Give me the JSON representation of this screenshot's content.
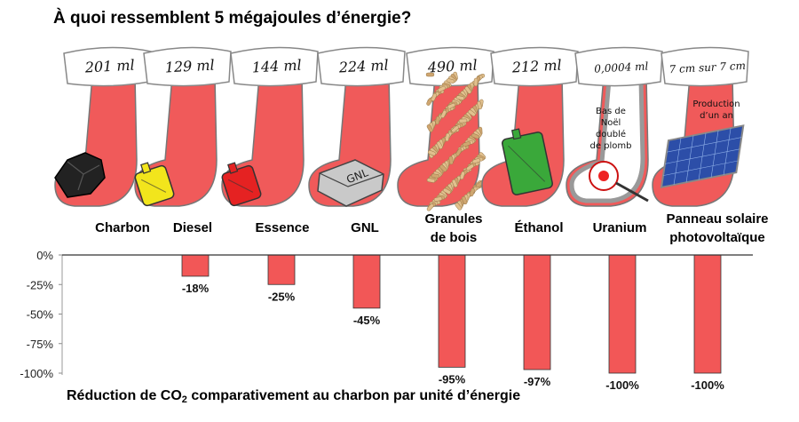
{
  "title": "À quoi ressemblent 5 mégajoules d’énergie?",
  "footer": {
    "prefix": "Réduction de CO",
    "subscript": "2",
    "suffix": " comparativement au charbon par unité d’énergie"
  },
  "stockings": [
    {
      "volume": "201 ml",
      "item": "Charbon",
      "icon": "coal-lump-icon"
    },
    {
      "volume": "129 ml",
      "item": "Diesel",
      "icon": "yellow-jerrycan-icon"
    },
    {
      "volume": "144 ml",
      "item": "Essence",
      "icon": "red-jerrycan-icon"
    },
    {
      "volume": "224 ml",
      "item": "GNL",
      "icon": "lng-tank-icon",
      "tank_text": "GNL"
    },
    {
      "volume": "490 ml",
      "item": "Granules de bois",
      "icon": "wood-pellets-icon"
    },
    {
      "volume": "212 ml",
      "item": "Éthanol",
      "icon": "green-jerrycan-icon"
    },
    {
      "volume": "0,0004 ml",
      "item": "Uranium",
      "icon": "uranium-pellet-icon",
      "note": "Bas de Noël doublé de plomb"
    },
    {
      "volume": "7 cm sur 7 cm",
      "item": "Panneau solaire photovoltaïque",
      "icon": "solar-panel-icon",
      "note": "Production d’un an"
    }
  ],
  "colors": {
    "stocking": "#f05a5a",
    "bar": "#f25757",
    "cuff": "#ffffff"
  },
  "chart_data": {
    "type": "bar",
    "categories": [
      "Charbon",
      "Diesel",
      "Essence",
      "GNL",
      "Granules de bois",
      "Éthanol",
      "Uranium",
      "Panneau solaire photovoltaïque"
    ],
    "values": [
      0,
      -18,
      -25,
      -45,
      -95,
      -97,
      -100,
      -100
    ],
    "data_labels": [
      "",
      "-18%",
      "-25%",
      "-45%",
      "-95%",
      "-97%",
      "-100%",
      "-100%"
    ],
    "yticks": [
      "0%",
      "-25%",
      "-50%",
      "-75%",
      "-100%"
    ],
    "ylim": [
      -100,
      0
    ],
    "grid": false,
    "title": "Réduction de CO2 comparativement au charbon par unité d’énergie"
  }
}
